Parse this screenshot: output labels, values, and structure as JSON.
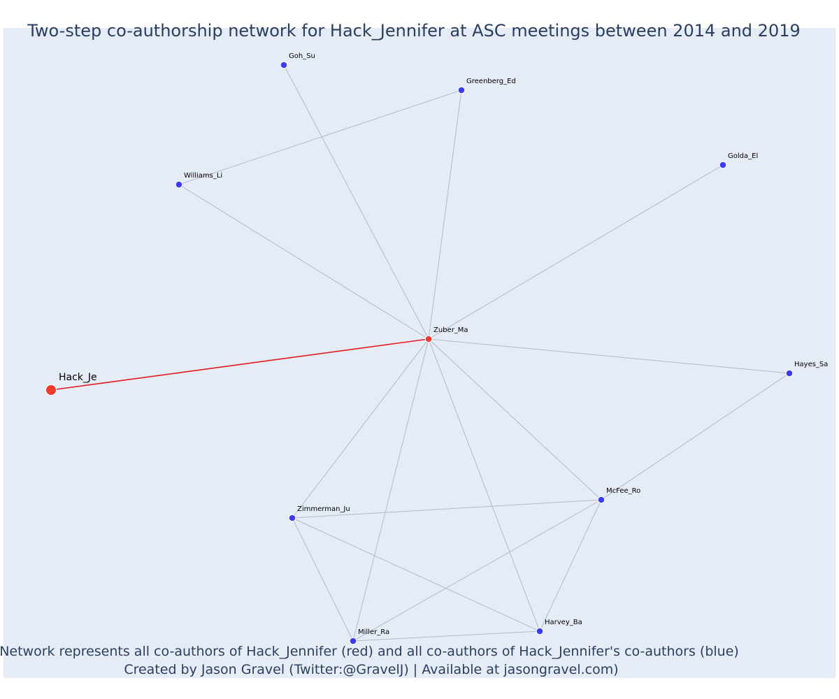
{
  "title": "Two-step co-authorship network for Hack_Jennifer at ASC meetings between 2014 and 2019",
  "caption": {
    "line1": "Network represents all co-authors of Hack_Jennifer (red) and all co-authors of Hack_Jennifer's co-authors (blue)",
    "line2": "Created by Jason Gravel (Twitter:@GravelJ) | Available at jasongravel.com)"
  },
  "colors": {
    "background": "#e5ecf6",
    "red": "#ef3b2c",
    "blue": "#3b3bf0",
    "edge": "#b3b8cc",
    "focal_edge": "#e8191f",
    "text": "#2a3f5f"
  },
  "nodes": [
    {
      "id": "Hack_Je",
      "label": "Hack_Je",
      "group": "focal"
    },
    {
      "id": "Zuber_Ma",
      "label": "Zuber_Ma",
      "group": "coauthor"
    },
    {
      "id": "Goh_Su",
      "label": "Goh_Su",
      "group": "second"
    },
    {
      "id": "Greenberg_Ed",
      "label": "Greenberg_Ed",
      "group": "second"
    },
    {
      "id": "Williams_Li",
      "label": "Williams_Li",
      "group": "second"
    },
    {
      "id": "Golda_El",
      "label": "Golda_El",
      "group": "second"
    },
    {
      "id": "Hayes_Sa",
      "label": "Hayes_Sa",
      "group": "second"
    },
    {
      "id": "McFee_Ro",
      "label": "McFee_Ro",
      "group": "second"
    },
    {
      "id": "Zimmerman_Ju",
      "label": "Zimmerman_Ju",
      "group": "second"
    },
    {
      "id": "Harvey_Ba",
      "label": "Harvey_Ba",
      "group": "second"
    },
    {
      "id": "Miller_Ra",
      "label": "Miller_Ra",
      "group": "second"
    }
  ],
  "edges": [
    {
      "source": "Hack_Je",
      "target": "Zuber_Ma",
      "focal": true
    },
    {
      "source": "Zuber_Ma",
      "target": "Goh_Su"
    },
    {
      "source": "Zuber_Ma",
      "target": "Greenberg_Ed"
    },
    {
      "source": "Zuber_Ma",
      "target": "Williams_Li"
    },
    {
      "source": "Zuber_Ma",
      "target": "Golda_El"
    },
    {
      "source": "Zuber_Ma",
      "target": "Hayes_Sa"
    },
    {
      "source": "Zuber_Ma",
      "target": "McFee_Ro"
    },
    {
      "source": "Zuber_Ma",
      "target": "Zimmerman_Ju"
    },
    {
      "source": "Zuber_Ma",
      "target": "Harvey_Ba"
    },
    {
      "source": "Zuber_Ma",
      "target": "Miller_Ra"
    },
    {
      "source": "Williams_Li",
      "target": "Greenberg_Ed"
    },
    {
      "source": "Hayes_Sa",
      "target": "McFee_Ro"
    },
    {
      "source": "McFee_Ro",
      "target": "Zimmerman_Ju"
    },
    {
      "source": "McFee_Ro",
      "target": "Miller_Ra"
    },
    {
      "source": "McFee_Ro",
      "target": "Harvey_Ba"
    },
    {
      "source": "Zimmerman_Ju",
      "target": "Miller_Ra"
    },
    {
      "source": "Zimmerman_Ju",
      "target": "Harvey_Ba"
    },
    {
      "source": "Miller_Ra",
      "target": "Harvey_Ba"
    }
  ]
}
